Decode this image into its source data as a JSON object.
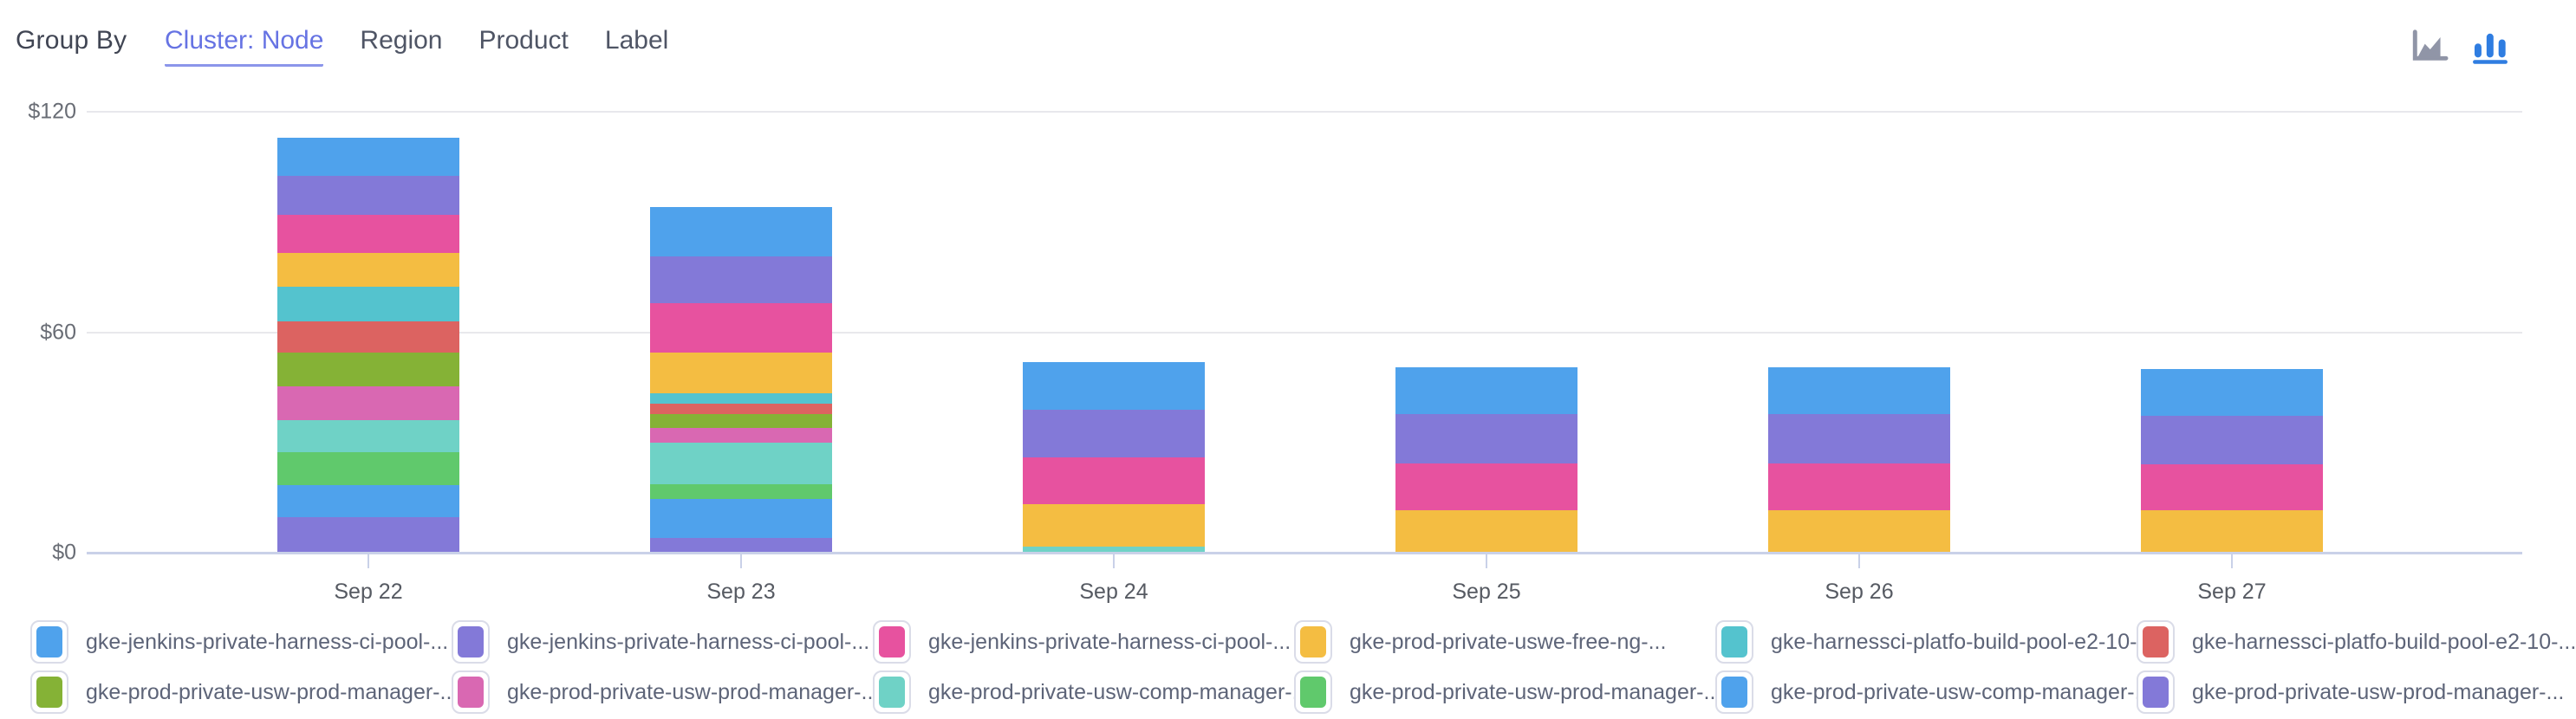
{
  "header": {
    "group_by_label": "Group By",
    "tabs": [
      {
        "label": "Cluster: Node",
        "active": true
      },
      {
        "label": "Region",
        "active": false
      },
      {
        "label": "Product",
        "active": false
      },
      {
        "label": "Label",
        "active": false
      }
    ],
    "chart_type_buttons": [
      {
        "name": "area-chart-icon",
        "active": false
      },
      {
        "name": "bar-chart-icon",
        "active": true
      }
    ]
  },
  "colors": {
    "active_tab": "#6673e3",
    "inactive_tab": "#4f5565",
    "icon_active": "#2f7de1",
    "icon_inactive": "#9095a7",
    "gridline": "#e8e8ec",
    "axis_line": "#c9d1e8",
    "axis_text": "#696d75"
  },
  "chart_data": {
    "type": "bar",
    "stacked": true,
    "grid": true,
    "legend_position": "bottom",
    "xlabel": "",
    "ylabel": "",
    "ylim": [
      0,
      120
    ],
    "yticks": [
      {
        "label": "$0",
        "value": 0
      },
      {
        "label": "$60",
        "value": 60
      },
      {
        "label": "$120",
        "value": 120
      }
    ],
    "categories": [
      "Sep 22",
      "Sep 23",
      "Sep 24",
      "Sep 25",
      "Sep 26",
      "Sep 27"
    ],
    "series": [
      {
        "name": "gke-jenkins-private-harness-ci-pool-...",
        "color": "#4FA2EC",
        "values": [
          10.5,
          13.3,
          13.0,
          12.6,
          12.6,
          12.8
        ]
      },
      {
        "name": "gke-jenkins-private-harness-ci-pool-...",
        "color": "#8379D8",
        "values": [
          10.6,
          12.8,
          13.0,
          13.4,
          13.4,
          13.0
        ]
      },
      {
        "name": "gke-jenkins-private-harness-ci-pool-...",
        "color": "#E7529F",
        "values": [
          10.3,
          13.4,
          12.8,
          12.9,
          12.9,
          12.7
        ]
      },
      {
        "name": "gke-prod-private-uswe-free-ng-...",
        "color": "#F4BD42",
        "values": [
          9.2,
          11.1,
          11.5,
          11.2,
          11.2,
          11.2
        ]
      },
      {
        "name": "gke-harnessci-platfo-build-pool-e2-10-...",
        "color": "#54C3CE",
        "values": [
          9.3,
          2.8,
          0,
          0,
          0,
          0
        ]
      },
      {
        "name": "gke-harnessci-platfo-build-pool-e2-10-...",
        "color": "#DC6361",
        "values": [
          8.7,
          3.0,
          0,
          0,
          0,
          0
        ]
      },
      {
        "name": "gke-prod-private-usw-prod-manager-...",
        "color": "#85B236",
        "values": [
          9.1,
          3.7,
          0,
          0,
          0,
          0
        ]
      },
      {
        "name": "gke-prod-private-usw-prod-manager-...",
        "color": "#D968B2",
        "values": [
          9.1,
          4.0,
          0,
          0,
          0,
          0
        ]
      },
      {
        "name": "gke-prod-private-usw-comp-manager-...",
        "color": "#6FD2C6",
        "values": [
          8.9,
          11.3,
          1.4,
          0,
          0,
          0
        ]
      },
      {
        "name": "gke-prod-private-usw-prod-manager-...",
        "color": "#60C96C",
        "values": [
          8.8,
          4.0,
          0,
          0,
          0,
          0
        ]
      },
      {
        "name": "gke-prod-private-usw-comp-manager-...",
        "color": "#4FA2EC",
        "values": [
          8.9,
          10.6,
          0,
          0,
          0,
          0
        ]
      },
      {
        "name": "gke-prod-private-usw-prod-manager-...",
        "color": "#8379D8",
        "values": [
          9.3,
          3.8,
          0,
          0,
          0,
          0
        ]
      }
    ]
  }
}
